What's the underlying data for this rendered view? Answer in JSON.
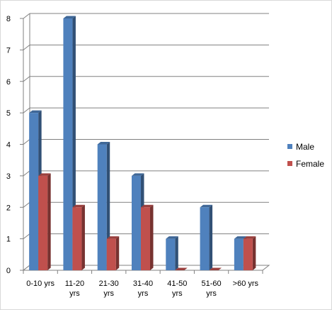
{
  "chart_data": {
    "type": "bar",
    "categories": [
      [
        "0-10 yrs"
      ],
      [
        "11-20",
        "yrs"
      ],
      [
        "21-30",
        "yrs"
      ],
      [
        "31-40",
        "yrs"
      ],
      [
        "41-50",
        "yrs"
      ],
      [
        "51-60",
        "yrs"
      ],
      [
        ">60 yrs"
      ]
    ],
    "series": [
      {
        "name": "Male",
        "values": [
          5,
          8,
          4,
          3,
          1,
          2,
          1
        ],
        "color": "#4f81bd"
      },
      {
        "name": "Female",
        "values": [
          3,
          2,
          1,
          2,
          0,
          0,
          1
        ],
        "color": "#c0504d"
      }
    ],
    "title": "",
    "xlabel": "",
    "ylabel": "",
    "ylim": [
      0,
      8
    ],
    "yticks": [
      0,
      1,
      2,
      3,
      4,
      5,
      6,
      7,
      8
    ],
    "grid": true,
    "legend_position": "right",
    "style": "3d-column"
  }
}
